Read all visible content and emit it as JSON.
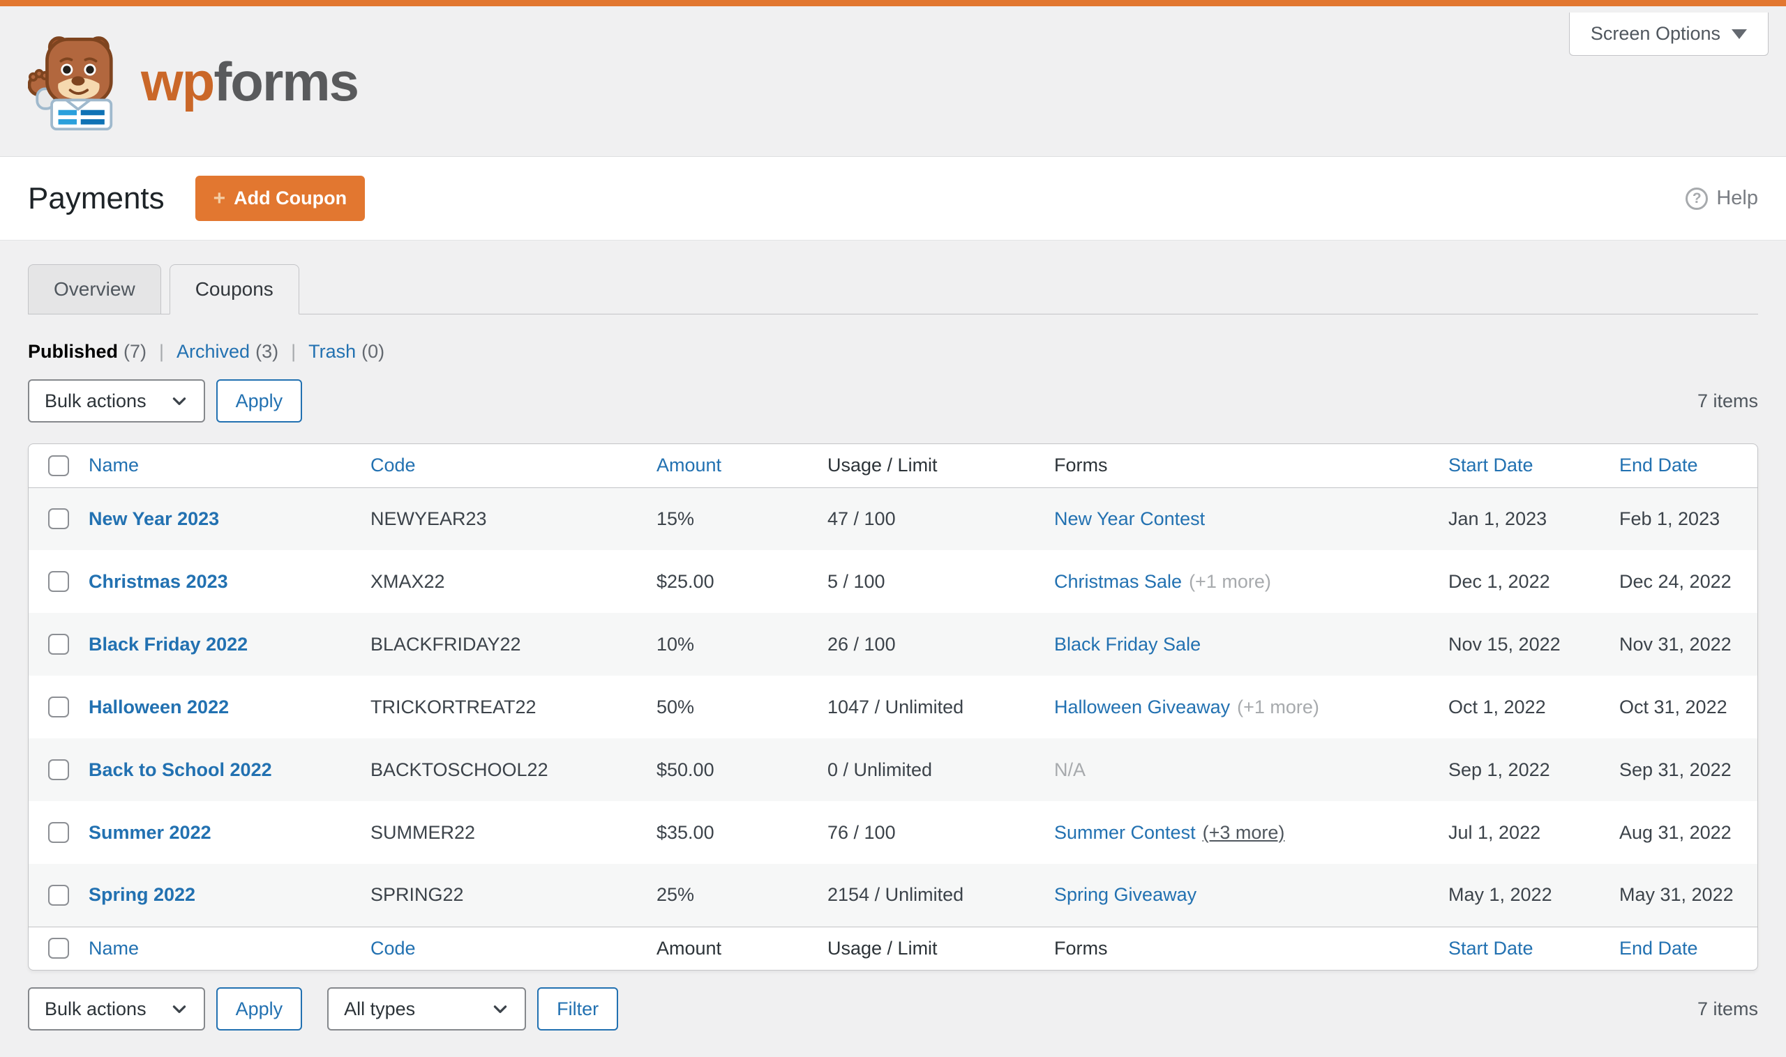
{
  "colors": {
    "accent_orange": "#e27730",
    "link_blue": "#2271b1",
    "row_stripe": "#f6f7f7"
  },
  "header": {
    "brand_wp": "wp",
    "brand_forms": "forms",
    "screen_options_label": "Screen Options"
  },
  "page_header": {
    "title": "Payments",
    "add_coupon_label": "Add Coupon",
    "help_label": "Help"
  },
  "tabs": [
    {
      "label": "Overview",
      "active": false
    },
    {
      "label": "Coupons",
      "active": true
    }
  ],
  "views": [
    {
      "label": "Published",
      "count": "(7)",
      "current": true
    },
    {
      "label": "Archived",
      "count": "(3)",
      "current": false
    },
    {
      "label": "Trash",
      "count": "(0)",
      "current": false
    }
  ],
  "toolbar_top": {
    "bulk_actions": "Bulk actions",
    "apply": "Apply",
    "items": "7 items"
  },
  "toolbar_bottom": {
    "bulk_actions": "Bulk actions",
    "apply": "Apply",
    "types": "All types",
    "filter": "Filter",
    "items": "7 items"
  },
  "table": {
    "columns": [
      {
        "label": "Name",
        "header_link": true,
        "footer_link": true
      },
      {
        "label": "Code",
        "header_link": true,
        "footer_link": true
      },
      {
        "label": "Amount",
        "header_link": true,
        "footer_link": false
      },
      {
        "label": "Usage / Limit",
        "header_link": false,
        "footer_link": false
      },
      {
        "label": "Forms",
        "header_link": false,
        "footer_link": false
      },
      {
        "label": "Start Date",
        "header_link": true,
        "footer_link": true
      },
      {
        "label": "End Date",
        "header_link": true,
        "footer_link": true
      }
    ],
    "rows": [
      {
        "name": "New Year 2023",
        "code": "NEWYEAR23",
        "amount": "15%",
        "usage": "47 / 100",
        "forms_label": "New Year Contest",
        "forms_na": false,
        "forms_extra": "",
        "forms_extra_is_link": false,
        "start": "Jan 1, 2023",
        "end": "Feb 1, 2023"
      },
      {
        "name": "Christmas 2023",
        "code": "XMAX22",
        "amount": "$25.00",
        "usage": "5 / 100",
        "forms_label": "Christmas Sale",
        "forms_na": false,
        "forms_extra": "(+1 more)",
        "forms_extra_is_link": false,
        "start": "Dec 1, 2022",
        "end": "Dec 24, 2022"
      },
      {
        "name": "Black Friday 2022",
        "code": "BLACKFRIDAY22",
        "amount": "10%",
        "usage": "26 / 100",
        "forms_label": "Black Friday Sale",
        "forms_na": false,
        "forms_extra": "",
        "forms_extra_is_link": false,
        "start": "Nov 15, 2022",
        "end": "Nov 31, 2022"
      },
      {
        "name": "Halloween 2022",
        "code": "TRICKORTREAT22",
        "amount": "50%",
        "usage": "1047 / Unlimited",
        "forms_label": "Halloween Giveaway",
        "forms_na": false,
        "forms_extra": "(+1 more)",
        "forms_extra_is_link": false,
        "start": "Oct 1, 2022",
        "end": "Oct 31, 2022"
      },
      {
        "name": "Back to School 2022",
        "code": "BACKTOSCHOOL22",
        "amount": "$50.00",
        "usage": "0 / Unlimited",
        "forms_label": "N/A",
        "forms_na": true,
        "forms_extra": "",
        "forms_extra_is_link": false,
        "start": "Sep 1, 2022",
        "end": "Sep 31, 2022"
      },
      {
        "name": "Summer 2022",
        "code": "SUMMER22",
        "amount": "$35.00",
        "usage": "76 / 100",
        "forms_label": "Summer Contest",
        "forms_na": false,
        "forms_extra": "(+3 more)",
        "forms_extra_is_link": true,
        "start": "Jul 1, 2022",
        "end": "Aug 31, 2022"
      },
      {
        "name": "Spring 2022",
        "code": "SPRING22",
        "amount": "25%",
        "usage": "2154 / Unlimited",
        "forms_label": "Spring Giveaway",
        "forms_na": false,
        "forms_extra": "",
        "forms_extra_is_link": false,
        "start": "May 1, 2022",
        "end": "May 31, 2022"
      }
    ]
  }
}
